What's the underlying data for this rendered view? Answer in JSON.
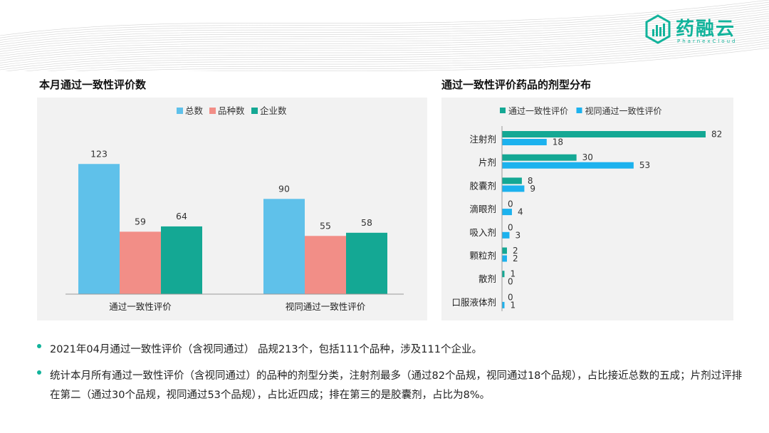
{
  "header": {
    "logo_text": "药融云",
    "logo_sub": "PharnexCloud",
    "brand_color": "#12b39b"
  },
  "left": {
    "title": "本月通过一致性评价数"
  },
  "right": {
    "title": "通过一致性评价药品的剂型分布"
  },
  "chart_data": [
    {
      "type": "bar",
      "title": "本月通过一致性评价数",
      "categories": [
        "通过一致性评价",
        "视同通过一致性评价"
      ],
      "series": [
        {
          "name": "总数",
          "values": [
            123,
            90
          ],
          "color": "#5fc1ea"
        },
        {
          "name": "品种数",
          "values": [
            59,
            55
          ],
          "color": "#f28e87"
        },
        {
          "name": "企业数",
          "values": [
            64,
            58
          ],
          "color": "#14a894"
        }
      ],
      "ylim": [
        0,
        140
      ],
      "grid": false,
      "legend": "top"
    },
    {
      "type": "bar",
      "orientation": "horizontal",
      "title": "通过一致性评价药品的剂型分布",
      "categories": [
        "注射剂",
        "片剂",
        "胶囊剂",
        "滴眼剂",
        "吸入剂",
        "颗粒剂",
        "散剂",
        "口服液体剂"
      ],
      "series": [
        {
          "name": "通过一致性评价",
          "values": [
            82,
            30,
            8,
            0,
            0,
            2,
            1,
            0
          ],
          "color": "#14a894"
        },
        {
          "name": "视同通过一致性评价",
          "values": [
            18,
            53,
            9,
            4,
            3,
            2,
            0,
            1
          ],
          "color": "#1cb2ee"
        }
      ],
      "xlim": [
        0,
        82
      ],
      "grid": false,
      "legend": "top"
    }
  ],
  "bullets": [
    "2021年04月通过一致性评价（含视同通过） 品规213个，包括111个品种，涉及111个企业。",
    "统计本月所有通过一致性评价（含视同通过）的品种的剂型分类，注射剂最多（通过82个品规，视同通过18个品规），占比接近总数的五成；片剂过评排在第二（通过30个品规，视同通过53个品规），占比近四成；排在第三的是胶囊剂，占比为8%。"
  ]
}
